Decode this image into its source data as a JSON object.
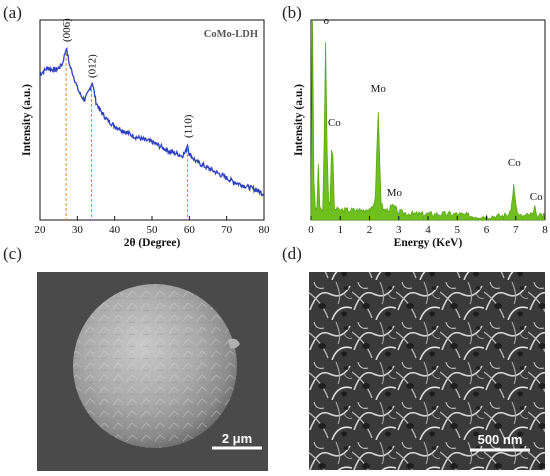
{
  "panels": {
    "a": "(a)",
    "b": "(b)",
    "c": "(c)",
    "d": "(d)"
  },
  "colors": {
    "xrd_line": "#2f3fc0",
    "eds_fill": "#6fbf1f",
    "guide": "#e09010",
    "sem_bg": "#4a4a4a"
  },
  "chart_data": [
    {
      "type": "line",
      "title": "CoMo-LDH",
      "xlabel": "2θ (Degree)",
      "ylabel": "Intensity (a.u.)",
      "xlim": [
        20,
        80
      ],
      "xticks": [
        "20",
        "30",
        "40",
        "50",
        "60",
        "70",
        "80"
      ],
      "grid": false,
      "x": [
        20,
        22,
        24,
        25,
        26,
        27,
        28,
        29,
        30,
        31,
        32,
        33,
        34,
        35,
        36,
        38,
        40,
        42,
        45,
        48,
        50,
        52,
        55,
        57,
        58,
        59,
        59.5,
        60,
        61,
        62,
        64,
        66,
        68,
        70,
        72,
        75,
        78,
        80
      ],
      "y": [
        0.73,
        0.76,
        0.75,
        0.76,
        0.78,
        0.86,
        0.77,
        0.72,
        0.66,
        0.62,
        0.6,
        0.64,
        0.69,
        0.59,
        0.55,
        0.5,
        0.47,
        0.45,
        0.42,
        0.4,
        0.39,
        0.37,
        0.34,
        0.33,
        0.32,
        0.34,
        0.38,
        0.33,
        0.31,
        0.29,
        0.27,
        0.25,
        0.23,
        0.21,
        0.19,
        0.17,
        0.15,
        0.13
      ],
      "peaks": [
        {
          "x": 27,
          "label": "(006)"
        },
        {
          "x": 33.8,
          "label": "(012)"
        },
        {
          "x": 59.5,
          "label": "(110)"
        }
      ]
    },
    {
      "type": "area",
      "xlabel": "Energy (KeV)",
      "ylabel": "Intensity (a.u.)",
      "xlim": [
        0,
        8
      ],
      "xticks": [
        "0",
        "1",
        "2",
        "3",
        "4",
        "5",
        "6",
        "7",
        "8"
      ],
      "grid": false,
      "x": [
        0,
        0.05,
        0.1,
        0.15,
        0.2,
        0.25,
        0.3,
        0.35,
        0.4,
        0.45,
        0.5,
        0.55,
        0.6,
        0.65,
        0.7,
        0.75,
        0.8,
        0.85,
        0.9,
        1.0,
        1.2,
        1.5,
        1.8,
        2.0,
        2.1,
        2.2,
        2.25,
        2.3,
        2.35,
        2.4,
        2.5,
        2.6,
        2.8,
        3.0,
        3.5,
        4.0,
        4.5,
        5.0,
        5.5,
        6.0,
        6.5,
        6.8,
        6.9,
        6.93,
        7.0,
        7.1,
        7.3,
        7.6,
        7.65,
        7.7,
        8.0
      ],
      "y": [
        0.02,
        1.0,
        0.2,
        0.06,
        0.05,
        0.28,
        0.07,
        0.05,
        0.05,
        0.4,
        0.89,
        0.35,
        0.08,
        0.08,
        0.35,
        0.32,
        0.06,
        0.05,
        0.05,
        0.05,
        0.05,
        0.05,
        0.05,
        0.06,
        0.05,
        0.12,
        0.35,
        0.54,
        0.3,
        0.08,
        0.05,
        0.05,
        0.07,
        0.04,
        0.03,
        0.03,
        0.03,
        0.03,
        0.02,
        0.02,
        0.02,
        0.03,
        0.12,
        0.18,
        0.08,
        0.02,
        0.02,
        0.03,
        0.06,
        0.02,
        0.02
      ],
      "peak_labels": [
        {
          "x": 0.52,
          "y": 0.96,
          "label": "o"
        },
        {
          "x": 0.8,
          "y": 0.45,
          "label": "Co"
        },
        {
          "x": 2.3,
          "y": 0.62,
          "label": "Mo"
        },
        {
          "x": 2.85,
          "y": 0.1,
          "label": "Mo"
        },
        {
          "x": 6.95,
          "y": 0.25,
          "label": "Co"
        },
        {
          "x": 7.7,
          "y": 0.08,
          "label": "Co"
        }
      ]
    }
  ],
  "sem": {
    "c_scale": "2 μm",
    "d_scale": "500 nm"
  }
}
